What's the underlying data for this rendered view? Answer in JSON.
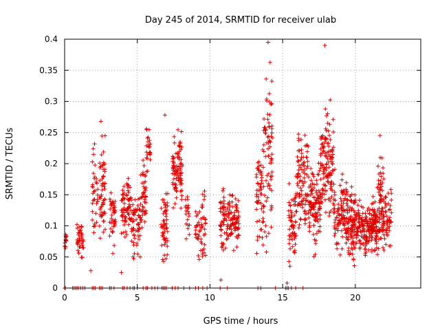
{
  "chart_data": {
    "type": "scatter",
    "title": "Day 245 of 2014, SRMTID for receiver ulab",
    "xlabel": "GPS time / hours",
    "ylabel": "SRMTID / TECUs",
    "xlim": [
      0,
      24.5
    ],
    "ylim": [
      0,
      0.4
    ],
    "xticks": [
      0,
      5,
      10,
      15,
      20
    ],
    "xtick_labels": [
      "0",
      "5",
      "10",
      "15",
      "20"
    ],
    "yticks": [
      0,
      0.05,
      0.1,
      0.15,
      0.2,
      0.25,
      0.3,
      0.35,
      0.4
    ],
    "ytick_labels": [
      "0",
      "0.05",
      "0.1",
      "0.15",
      "0.2",
      "0.25",
      "0.3",
      "0.35",
      "0.4"
    ],
    "grid": true,
    "marker": "plus",
    "color": "#e00000",
    "series": [
      {
        "name": "SRMTID",
        "clusters": [
          {
            "start": 0.0,
            "end": 0.15,
            "center": 0.075,
            "spread": 0.015,
            "n": 12
          },
          {
            "start": 0.85,
            "end": 1.3,
            "center": 0.075,
            "spread": 0.022,
            "n": 40
          },
          {
            "start": 1.9,
            "end": 2.3,
            "center": 0.15,
            "spread": 0.05,
            "n": 35
          },
          {
            "start": 2.4,
            "end": 2.8,
            "center": 0.16,
            "spread": 0.055,
            "n": 55
          },
          {
            "start": 3.1,
            "end": 3.5,
            "center": 0.12,
            "spread": 0.03,
            "n": 40
          },
          {
            "start": 3.9,
            "end": 4.6,
            "center": 0.13,
            "spread": 0.035,
            "n": 70
          },
          {
            "start": 4.6,
            "end": 5.2,
            "center": 0.1,
            "spread": 0.04,
            "n": 55
          },
          {
            "start": 5.2,
            "end": 5.6,
            "center": 0.14,
            "spread": 0.04,
            "n": 45
          },
          {
            "start": 5.6,
            "end": 5.9,
            "center": 0.22,
            "spread": 0.03,
            "n": 25
          },
          {
            "start": 6.6,
            "end": 7.1,
            "center": 0.1,
            "spread": 0.04,
            "n": 55
          },
          {
            "start": 7.4,
            "end": 8.1,
            "center": 0.19,
            "spread": 0.04,
            "n": 90
          },
          {
            "start": 8.3,
            "end": 8.6,
            "center": 0.12,
            "spread": 0.03,
            "n": 20
          },
          {
            "start": 9.0,
            "end": 9.7,
            "center": 0.1,
            "spread": 0.03,
            "n": 55
          },
          {
            "start": 10.7,
            "end": 11.3,
            "center": 0.11,
            "spread": 0.035,
            "n": 60
          },
          {
            "start": 11.3,
            "end": 12.0,
            "center": 0.11,
            "spread": 0.03,
            "n": 75
          },
          {
            "start": 13.2,
            "end": 13.7,
            "center": 0.15,
            "spread": 0.06,
            "n": 60
          },
          {
            "start": 13.7,
            "end": 14.3,
            "center": 0.22,
            "spread": 0.09,
            "n": 75
          },
          {
            "start": 15.4,
            "end": 15.9,
            "center": 0.1,
            "spread": 0.04,
            "n": 55
          },
          {
            "start": 15.9,
            "end": 16.8,
            "center": 0.18,
            "spread": 0.05,
            "n": 100
          },
          {
            "start": 16.8,
            "end": 17.6,
            "center": 0.13,
            "spread": 0.04,
            "n": 110
          },
          {
            "start": 17.6,
            "end": 18.5,
            "center": 0.2,
            "spread": 0.06,
            "n": 130
          },
          {
            "start": 18.5,
            "end": 19.5,
            "center": 0.12,
            "spread": 0.04,
            "n": 120
          },
          {
            "start": 19.5,
            "end": 20.5,
            "center": 0.1,
            "spread": 0.035,
            "n": 140
          },
          {
            "start": 20.5,
            "end": 21.5,
            "center": 0.1,
            "spread": 0.03,
            "n": 150
          },
          {
            "start": 21.5,
            "end": 22.0,
            "center": 0.13,
            "spread": 0.05,
            "n": 80
          },
          {
            "start": 22.0,
            "end": 22.5,
            "center": 0.11,
            "spread": 0.03,
            "n": 45
          }
        ],
        "outliers": [
          [
            1.8,
            0.028
          ],
          [
            3.9,
            0.025
          ],
          [
            10.75,
            0.013
          ],
          [
            15.3,
            0.008
          ],
          [
            15.5,
            0.035
          ],
          [
            14.0,
            0.395
          ],
          [
            17.9,
            0.39
          ],
          [
            6.9,
            0.278
          ],
          [
            2.5,
            0.268
          ],
          [
            21.7,
            0.245
          ]
        ],
        "zero_points": [
          0.0,
          0.05,
          0.55,
          0.65,
          0.75,
          0.85,
          0.95,
          1.1,
          1.25,
          1.4,
          1.9,
          2.0,
          2.1,
          2.4,
          2.5,
          2.6,
          3.1,
          3.2,
          3.4,
          4.0,
          4.1,
          4.3,
          4.5,
          4.7,
          4.8,
          5.0,
          5.4,
          5.6,
          5.7,
          6.0,
          6.2,
          6.4,
          6.7,
          6.8,
          6.9,
          7.0,
          7.4,
          7.6,
          7.8,
          8.2,
          8.6,
          9.0,
          9.2,
          9.5,
          9.8,
          10.7,
          11.2,
          13.3,
          13.5,
          14.5,
          15.2,
          15.3,
          15.4,
          15.6,
          15.9,
          16.4
        ]
      }
    ]
  }
}
